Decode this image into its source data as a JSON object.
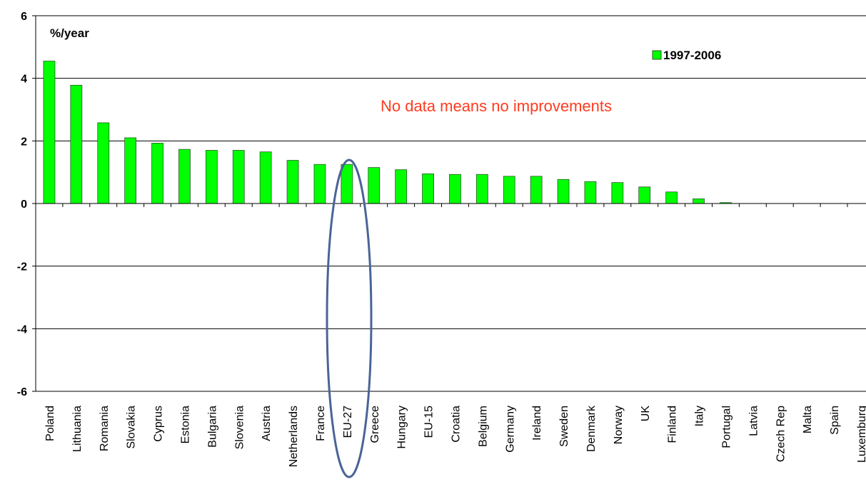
{
  "chart_data": {
    "type": "bar",
    "y_label": "%/year",
    "annotation": "No data means no improvements",
    "categories": [
      "Poland",
      "Lithuania",
      "Romania",
      "Slovakia",
      "Cyprus",
      "Estonia",
      "Bulgaria",
      "Slovenia",
      "Austria",
      "Netherlands",
      "France",
      "EU-27",
      "Greece",
      "Hungary",
      "EU-15",
      "Croatia",
      "Belgium",
      "Germany",
      "Ireland",
      "Sweden",
      "Denmark",
      "Norway",
      "UK",
      "Finland",
      "Italy",
      "Portugal",
      "Latvia",
      "Czech Rep",
      "Malta",
      "Spain",
      "Luxemburg"
    ],
    "series": [
      {
        "name": "1997-2006",
        "color": "#00ff00",
        "values": [
          4.55,
          3.78,
          2.58,
          2.1,
          1.93,
          1.73,
          1.7,
          1.7,
          1.65,
          1.38,
          1.25,
          1.25,
          1.15,
          1.08,
          0.95,
          0.93,
          0.93,
          0.87,
          0.87,
          0.77,
          0.7,
          0.67,
          0.53,
          0.37,
          0.15,
          0.03,
          0,
          0,
          0,
          0,
          0
        ]
      }
    ],
    "ylim": [
      -6,
      6
    ],
    "yticks": [
      -6,
      -4,
      -2,
      0,
      2,
      4,
      6
    ],
    "grid": true,
    "legend": "top-right"
  }
}
